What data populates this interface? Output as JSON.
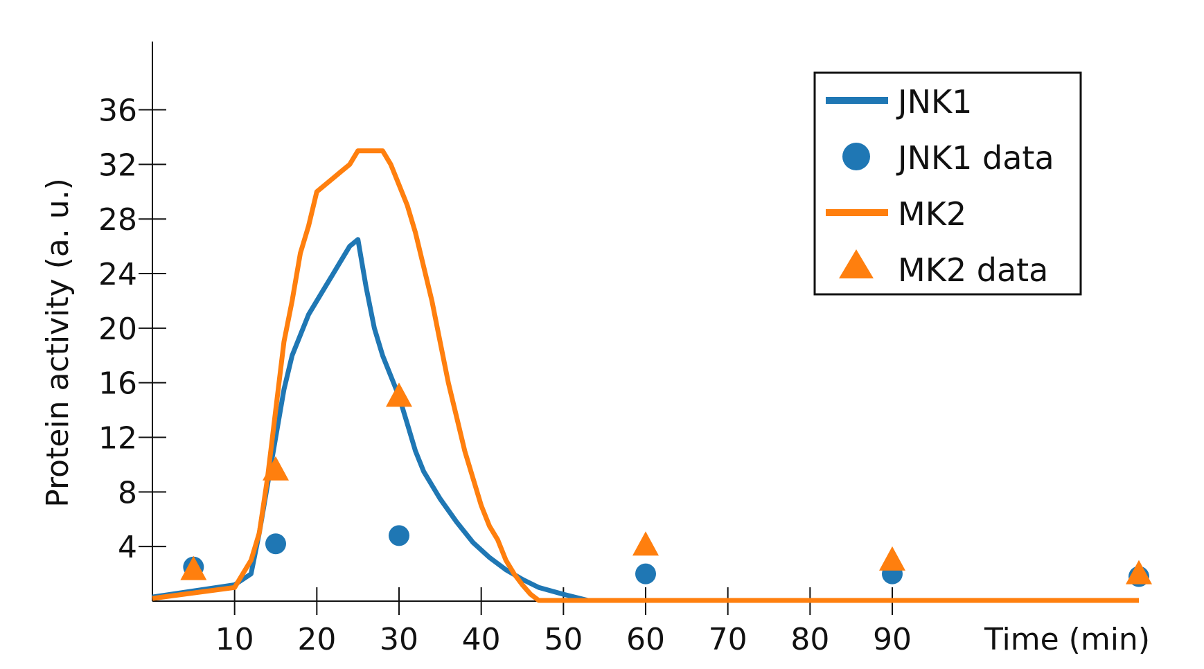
{
  "chart_data": {
    "type": "line",
    "xlabel": "Time (min)",
    "ylabel": "Protein activity (a. u.)",
    "x_ticks": [
      10,
      20,
      30,
      40,
      50,
      60,
      70,
      80,
      90
    ],
    "y_ticks": [
      4,
      8,
      12,
      16,
      20,
      24,
      28,
      32,
      36
    ],
    "xlim": [
      0,
      120
    ],
    "ylim": [
      0,
      41
    ],
    "grid": false,
    "legend_position": "top-right",
    "colors": {
      "jnk1": "#1f77b4",
      "mk2": "#ff7f0e"
    },
    "legend": [
      {
        "label": "JNK1",
        "marker": "line",
        "series": "jnk1"
      },
      {
        "label": "JNK1  data",
        "marker": "circle",
        "series": "jnk1"
      },
      {
        "label": "MK2",
        "marker": "line",
        "series": "mk2"
      },
      {
        "label": "MK2  data",
        "marker": "triangle",
        "series": "mk2"
      }
    ],
    "series": [
      {
        "name": "JNK1",
        "kind": "line",
        "color": "#1f77b4",
        "x": [
          0,
          10,
          12,
          13,
          14,
          15,
          16,
          17,
          18,
          19,
          20,
          21,
          22,
          23,
          24,
          25,
          26,
          27,
          28,
          29,
          30,
          31,
          32,
          33,
          35,
          37,
          39,
          41,
          43,
          45,
          47,
          50,
          53,
          60,
          70,
          80,
          90,
          120
        ],
        "y": [
          0.3,
          1.2,
          2,
          5,
          8.5,
          12,
          15.5,
          18,
          19.5,
          21,
          22,
          23,
          24,
          25,
          26,
          26.5,
          23,
          20,
          18,
          16.5,
          15,
          13,
          11,
          9.5,
          7.5,
          5.8,
          4.3,
          3.2,
          2.3,
          1.6,
          1.0,
          0.5,
          0.05,
          0.05,
          0.05,
          0.05,
          0.05,
          0.05
        ]
      },
      {
        "name": "JNK1  data",
        "kind": "scatter",
        "marker": "circle",
        "color": "#1f77b4",
        "x": [
          5,
          15,
          30,
          60,
          90,
          120
        ],
        "y": [
          2.5,
          4.2,
          4.8,
          2,
          2,
          1.8
        ]
      },
      {
        "name": "MK2",
        "kind": "line",
        "color": "#ff7f0e",
        "x": [
          0,
          10,
          11,
          12,
          13,
          14,
          15,
          16,
          17,
          18,
          19,
          20,
          21,
          22,
          23,
          24,
          25,
          26,
          27,
          28,
          29,
          30,
          31,
          32,
          33,
          34,
          35,
          36,
          37,
          38,
          39,
          40,
          41,
          42,
          43,
          44,
          45,
          46,
          47,
          50,
          60,
          70,
          80,
          90,
          120
        ],
        "y": [
          0.2,
          1.0,
          2,
          3,
          5,
          9,
          14,
          19,
          22,
          25.5,
          27.5,
          30,
          30.5,
          31,
          31.5,
          32,
          33,
          33,
          33,
          33,
          32,
          30.5,
          29,
          27,
          24.5,
          22,
          19,
          16,
          13.5,
          11,
          9,
          7,
          5.5,
          4.5,
          3,
          2,
          1.2,
          0.5,
          0.05,
          0.05,
          0.05,
          0.05,
          0.05,
          0.05,
          0.05
        ]
      },
      {
        "name": "MK2  data",
        "kind": "scatter",
        "marker": "triangle",
        "color": "#ff7f0e",
        "x": [
          5,
          15,
          30,
          60,
          90,
          120
        ],
        "y": [
          2.3,
          9.6,
          15,
          4.1,
          3,
          2
        ]
      }
    ]
  }
}
